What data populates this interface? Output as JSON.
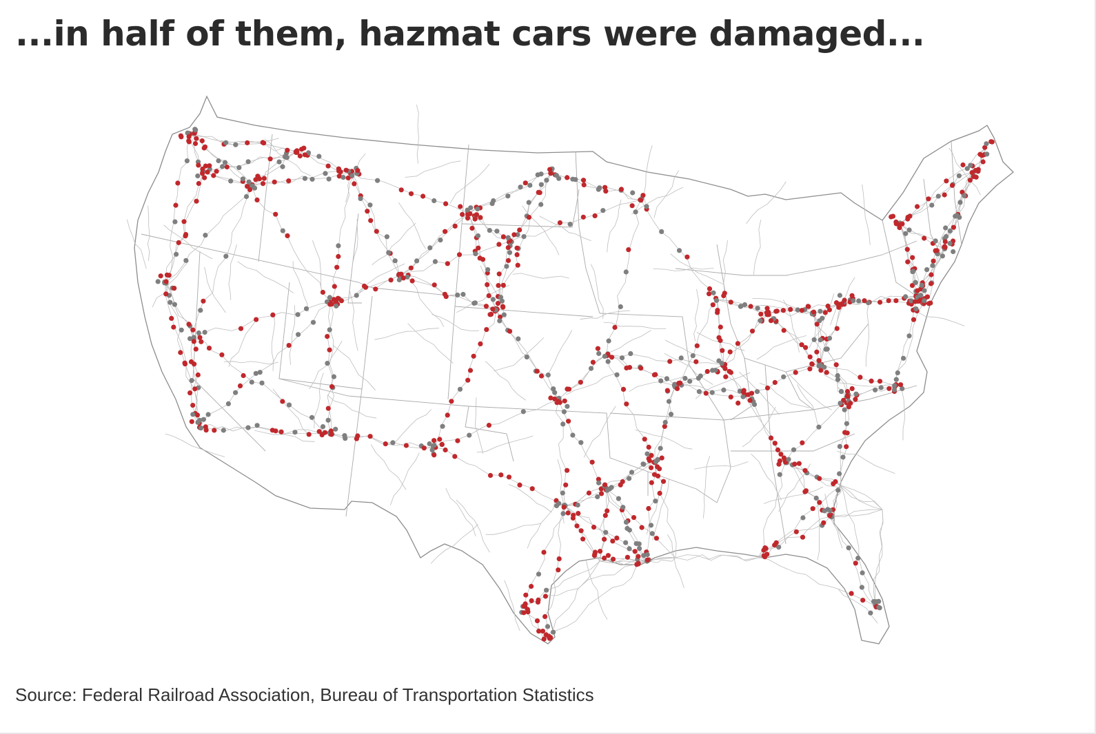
{
  "title": "...in half of them, hazmat cars were damaged...",
  "source": "Source: Federal Railroad Association, Bureau of Transportation Statistics",
  "colors": {
    "damaged": "#c0282c",
    "not_damaged": "#7f7f7f",
    "rail_line": "#bdbdbd",
    "state_border": "#8c8c8c",
    "title_text": "#2b2b2b"
  },
  "legend": null
}
